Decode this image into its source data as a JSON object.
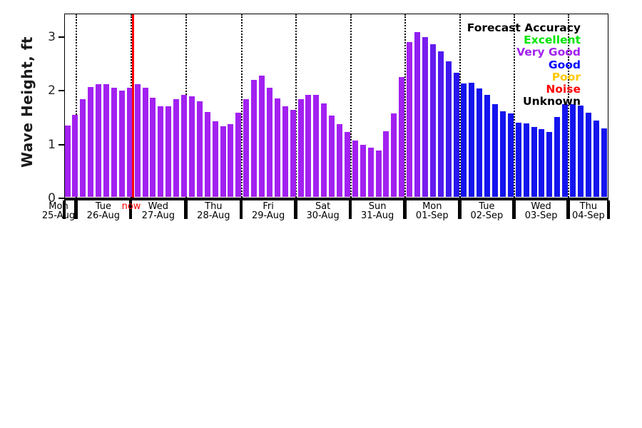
{
  "chart_data": {
    "type": "bar",
    "title": "",
    "ylabel": "Wave Height, ft",
    "xlabel": "",
    "ylim": [
      0,
      3.45
    ],
    "ytick_labels": [
      "0",
      "1",
      "2",
      "3"
    ],
    "ytick_values": [
      0,
      1,
      2,
      3
    ],
    "grid": "vertical dotted lines at day boundaries",
    "legend_position": "upper right",
    "days": [
      {
        "day": "Mon",
        "date": "25-Aug"
      },
      {
        "day": "Tue",
        "date": "26-Aug"
      },
      {
        "day": "Wed",
        "date": "27-Aug"
      },
      {
        "day": "Thu",
        "date": "28-Aug"
      },
      {
        "day": "Fri",
        "date": "29-Aug"
      },
      {
        "day": "Sat",
        "date": "30-Aug"
      },
      {
        "day": "Sun",
        "date": "31-Aug"
      },
      {
        "day": "Mon",
        "date": "01-Sep"
      },
      {
        "day": "Tue",
        "date": "02-Sep"
      },
      {
        "day": "Wed",
        "date": "03-Sep"
      },
      {
        "day": "Thu",
        "date": "04-Sep"
      }
    ],
    "bars_per_day": [
      2,
      7,
      7,
      7,
      7,
      7,
      7,
      7,
      7,
      7,
      5
    ],
    "values": [
      1.33,
      1.53,
      1.82,
      2.05,
      2.11,
      2.11,
      2.04,
      1.98,
      2.04,
      2.11,
      2.04,
      1.85,
      1.69,
      1.69,
      1.83,
      1.9,
      1.88,
      1.78,
      1.58,
      1.42,
      1.32,
      1.36,
      1.57,
      1.82,
      2.19,
      2.26,
      2.04,
      1.84,
      1.69,
      1.62,
      1.82,
      1.91,
      1.91,
      1.74,
      1.52,
      1.36,
      1.21,
      1.05,
      0.98,
      0.92,
      0.87,
      1.23,
      1.56,
      2.24,
      2.89,
      3.07,
      2.98,
      2.85,
      2.71,
      2.53,
      2.32,
      2.12,
      2.13,
      2.03,
      1.91,
      1.73,
      1.6,
      1.56,
      1.39,
      1.37,
      1.31,
      1.27,
      1.21,
      1.5,
      1.73,
      1.73,
      1.7,
      1.57,
      1.43,
      1.28
    ],
    "bar_colors": {
      "very_good_purple": "#A221F0",
      "good_blue": "#1414EE",
      "gradient_start_index": 44,
      "gradient_end_index": 51
    },
    "now_marker": {
      "label": "now",
      "color": "#FF0000",
      "position": "between 26-Aug and 27-Aug"
    },
    "legend": {
      "title": "Forecast Accuracy",
      "title_color": "#000000",
      "entries": [
        {
          "label": "Excellent",
          "color": "#00E400"
        },
        {
          "label": "Very Good",
          "color": "#A221F0"
        },
        {
          "label": "Good",
          "color": "#0000FF"
        },
        {
          "label": "Poor",
          "color": "#FFC900"
        },
        {
          "label": "Noise",
          "color": "#FF0000"
        },
        {
          "label": "Unknown",
          "color": "#000000"
        }
      ]
    }
  }
}
